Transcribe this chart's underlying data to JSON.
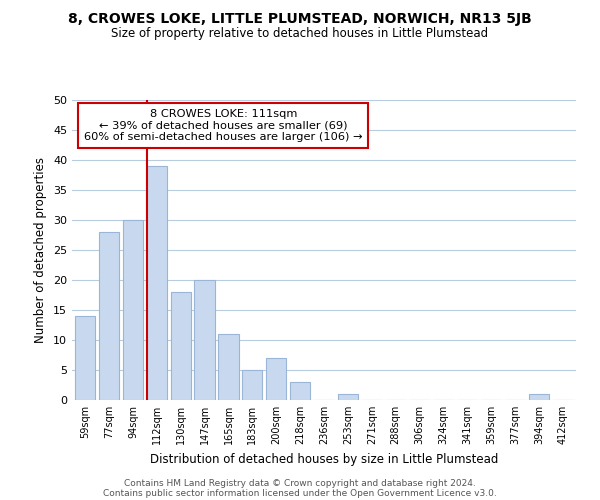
{
  "title": "8, CROWES LOKE, LITTLE PLUMSTEAD, NORWICH, NR13 5JB",
  "subtitle": "Size of property relative to detached houses in Little Plumstead",
  "bar_labels": [
    "59sqm",
    "77sqm",
    "94sqm",
    "112sqm",
    "130sqm",
    "147sqm",
    "165sqm",
    "183sqm",
    "200sqm",
    "218sqm",
    "236sqm",
    "253sqm",
    "271sqm",
    "288sqm",
    "306sqm",
    "324sqm",
    "341sqm",
    "359sqm",
    "377sqm",
    "394sqm",
    "412sqm"
  ],
  "bar_values": [
    14,
    28,
    30,
    39,
    18,
    20,
    11,
    5,
    7,
    3,
    0,
    1,
    0,
    0,
    0,
    0,
    0,
    0,
    0,
    1,
    0
  ],
  "bar_color": "#c8d9ef",
  "bar_edge_color": "#9ab5d5",
  "marker_index": 3,
  "marker_line_color": "#cc0000",
  "ylabel": "Number of detached properties",
  "xlabel": "Distribution of detached houses by size in Little Plumstead",
  "ylim": [
    0,
    50
  ],
  "yticks": [
    0,
    5,
    10,
    15,
    20,
    25,
    30,
    35,
    40,
    45,
    50
  ],
  "annotation_title": "8 CROWES LOKE: 111sqm",
  "annotation_line1": "← 39% of detached houses are smaller (69)",
  "annotation_line2": "60% of semi-detached houses are larger (106) →",
  "annotation_box_color": "#ffffff",
  "annotation_box_edge": "#cc0000",
  "footer_line1": "Contains HM Land Registry data © Crown copyright and database right 2024.",
  "footer_line2": "Contains public sector information licensed under the Open Government Licence v3.0.",
  "background_color": "#ffffff",
  "grid_color": "#b8cce0"
}
